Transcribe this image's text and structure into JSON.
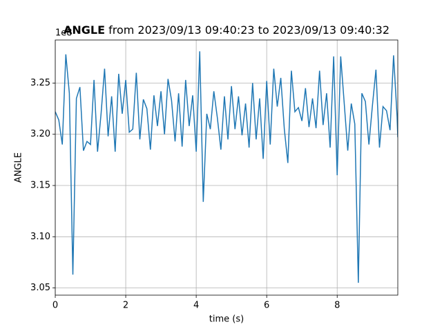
{
  "chart_data": {
    "type": "line",
    "title_name": "ANGLE",
    "title_range": "from 2023/09/13 09:40:23 to 2023/09/13 09:40:32",
    "x_label": "time (s)",
    "y_label": "ANGLE",
    "y_offset_label": "1e8",
    "xlim": [
      0,
      9.72
    ],
    "ylim": [
      3.043,
      3.292
    ],
    "xticks": [
      0,
      2,
      4,
      6,
      8
    ],
    "yticks": [
      3.05,
      {
        "value": 3.1,
        "label": "3.10"
      },
      3.15,
      {
        "value": 3.2,
        "label": "3.20"
      },
      3.25
    ],
    "grid": true,
    "x": [
      0,
      0.1,
      0.2,
      0.3,
      0.4,
      0.5,
      0.6,
      0.7,
      0.8,
      0.9,
      1.0,
      1.1,
      1.2,
      1.3,
      1.4,
      1.5,
      1.6,
      1.7,
      1.8,
      1.9,
      2.0,
      2.1,
      2.2,
      2.3,
      2.4,
      2.5,
      2.6,
      2.7,
      2.8,
      2.9,
      3.0,
      3.1,
      3.2,
      3.3,
      3.4,
      3.5,
      3.6,
      3.7,
      3.8,
      3.9,
      4.0,
      4.1,
      4.2,
      4.3,
      4.4,
      4.5,
      4.6,
      4.7,
      4.8,
      4.9,
      5.0,
      5.1,
      5.2,
      5.3,
      5.4,
      5.5,
      5.6,
      5.7,
      5.8,
      5.9,
      6.0,
      6.1,
      6.2,
      6.3,
      6.4,
      6.5,
      6.6,
      6.7,
      6.8,
      6.9,
      7.0,
      7.1,
      7.2,
      7.3,
      7.4,
      7.5,
      7.6,
      7.7,
      7.8,
      7.9,
      8.0,
      8.1,
      8.2,
      8.3,
      8.4,
      8.5,
      8.6,
      8.7,
      8.8,
      8.9,
      9.0,
      9.1,
      9.2,
      9.3,
      9.4,
      9.5,
      9.6,
      9.7,
      9.72
    ],
    "series": [
      {
        "color": "#1f77b4",
        "values": [
          3.222,
          3.214,
          3.19,
          3.278,
          3.24,
          3.063,
          3.235,
          3.246,
          3.184,
          3.193,
          3.19,
          3.253,
          3.183,
          3.22,
          3.264,
          3.198,
          3.237,
          3.183,
          3.259,
          3.22,
          3.253,
          3.202,
          3.205,
          3.26,
          3.195,
          3.234,
          3.225,
          3.185,
          3.238,
          3.208,
          3.242,
          3.2,
          3.254,
          3.233,
          3.193,
          3.24,
          3.188,
          3.253,
          3.208,
          3.238,
          3.183,
          3.281,
          3.134,
          3.22,
          3.205,
          3.242,
          3.216,
          3.185,
          3.237,
          3.195,
          3.247,
          3.205,
          3.237,
          3.199,
          3.23,
          3.187,
          3.25,
          3.195,
          3.235,
          3.176,
          3.252,
          3.19,
          3.264,
          3.227,
          3.255,
          3.205,
          3.172,
          3.262,
          3.222,
          3.226,
          3.213,
          3.245,
          3.207,
          3.235,
          3.206,
          3.262,
          3.209,
          3.24,
          3.187,
          3.276,
          3.16,
          3.276,
          3.23,
          3.184,
          3.23,
          3.21,
          3.055,
          3.24,
          3.232,
          3.19,
          3.228,
          3.263,
          3.187,
          3.227,
          3.223,
          3.204,
          3.277,
          3.217,
          3.197
        ]
      }
    ]
  }
}
